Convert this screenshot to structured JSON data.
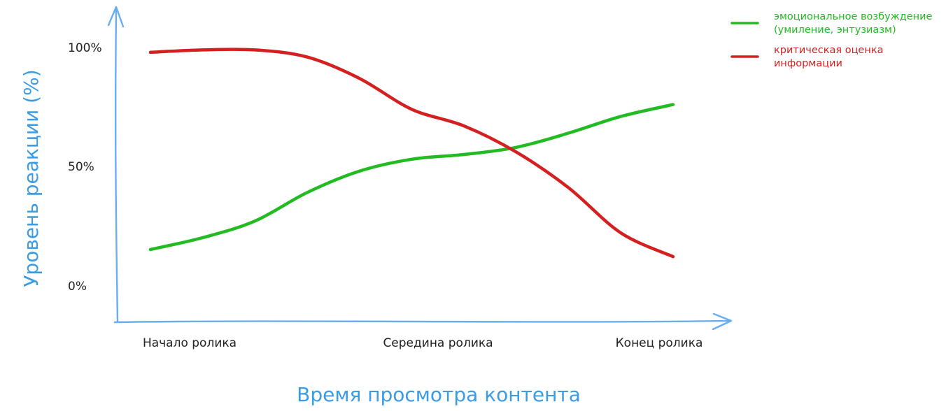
{
  "chart_data": {
    "type": "line",
    "title": "",
    "xlabel": "Время просмотра контента",
    "ylabel": "Уровень реакции (%)",
    "ylim": [
      0,
      100
    ],
    "yticks": [
      "100%",
      "50%",
      "0%"
    ],
    "categories": [
      "Начало ролика",
      "Середина ролика",
      "Конец ролика"
    ],
    "x": [
      0,
      10,
      20,
      30,
      40,
      50,
      60,
      70,
      80,
      90,
      100
    ],
    "series": [
      {
        "name_lines": [
          "эмоциональное возбуждение",
          "(умиление, энтузиазм)"
        ],
        "color": "#22bb22",
        "values": [
          15,
          20,
          27,
          39,
          48,
          53,
          55,
          58,
          64,
          71,
          76
        ]
      },
      {
        "name_lines": [
          "критическая оценка",
          "информации"
        ],
        "color": "#d42020",
        "values": [
          98,
          99,
          99,
          96,
          87,
          74,
          67,
          56,
          41,
          22,
          12
        ]
      }
    ],
    "grid": false,
    "legend": "top-right"
  }
}
